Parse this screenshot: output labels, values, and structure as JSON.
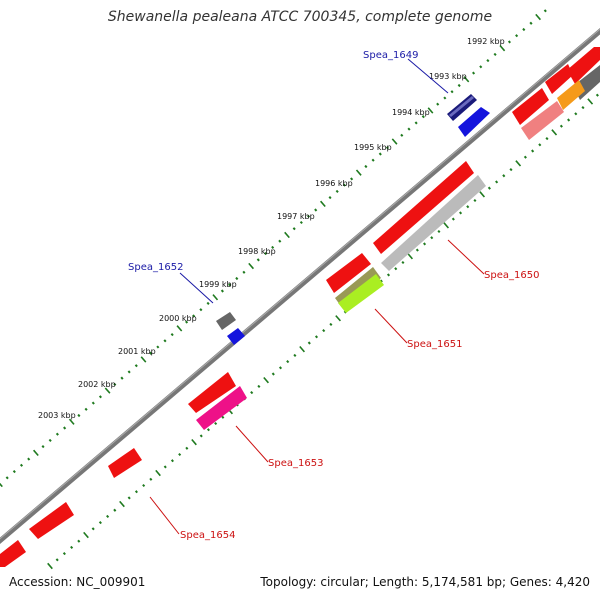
{
  "header": {
    "title": "Shewanella pealeana ATCC 700345, complete genome"
  },
  "footer": {
    "accession": "Accession: NC_009901",
    "stats": "Topology: circular; Length: 5,174,581 bp; Genes: 4,420"
  },
  "scale": {
    "tick_labels": [
      "1992 kbp",
      "1993 kbp",
      "1994 kbp",
      "1995 kbp",
      "1996 kbp",
      "1997 kbp",
      "1998 kbp",
      "1999 kbp",
      "2000 kbp",
      "2001 kbp",
      "2002 kbp",
      "2003 kbp"
    ]
  },
  "genes": {
    "spea_1649": "Spea_1649",
    "spea_1650": "Spea_1650",
    "spea_1651": "Spea_1651",
    "spea_1652": "Spea_1652",
    "spea_1653": "Spea_1653",
    "spea_1654": "Spea_1654"
  },
  "colors": {
    "backbone": "#777777",
    "tick_green": "#1f7a1f",
    "forward_label": "#1a1aa6",
    "reverse_label": "#cc1111",
    "red_gene": "#ee1111",
    "blue_gene": "#1414dd",
    "dark_gray_gene": "#666666",
    "light_gray_gene": "#bbbbbb",
    "pink_gene": "#ee1188",
    "lime_gene": "#aaee22",
    "olive_gene": "#999955",
    "orange_gene": "#f59a1a",
    "salmon_gene": "#f08080"
  }
}
